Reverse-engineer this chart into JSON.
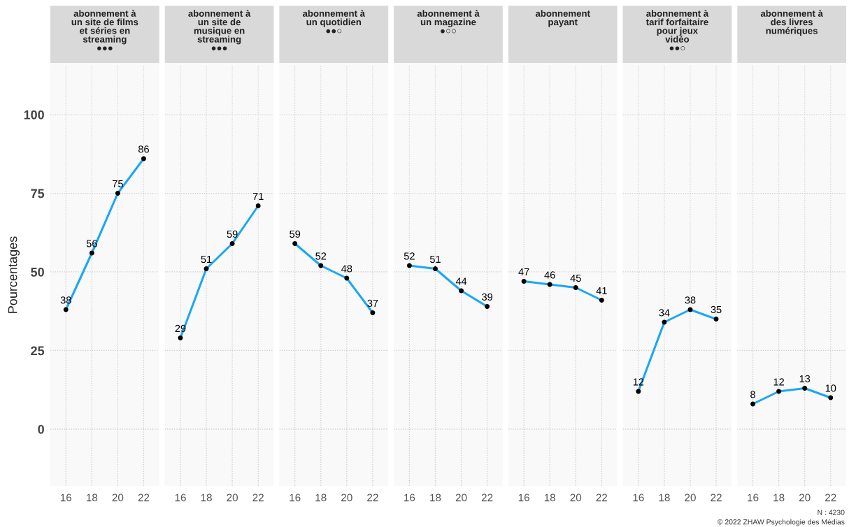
{
  "chart_data": [
    {
      "type": "line",
      "title": "abonnement à\nun site de films\net séries en\nstreaming\n●●●",
      "ylabel": "Pourcentages",
      "x": [
        16,
        18,
        20,
        22
      ],
      "series": [
        {
          "color": "#1aa7f5",
          "values": [
            38,
            56,
            75,
            86
          ]
        }
      ],
      "xlim": [
        14.8,
        23.2
      ],
      "xticks": [
        16,
        18,
        20,
        22
      ],
      "ylim": [
        -18,
        116
      ],
      "yticks": [
        0,
        25,
        50,
        75,
        100
      ],
      "grid": true,
      "marker": "circle",
      "line_style": "solid",
      "data_labels": true
    },
    {
      "type": "line",
      "title": "abonnement à\nun site de\nmusique en\nstreaming\n●●●",
      "x": [
        16,
        18,
        20,
        22
      ],
      "series": [
        {
          "color": "#1aa7f5",
          "values": [
            29,
            51,
            59,
            71
          ]
        }
      ],
      "xlim": [
        14.8,
        23.2
      ],
      "xticks": [
        16,
        18,
        20,
        22
      ],
      "ylim": [
        -18,
        116
      ],
      "tick_labels": "x",
      "grid": true,
      "marker": "circle",
      "line_style": "solid",
      "data_labels": true
    },
    {
      "type": "line",
      "title": "abonnement à\nun quotidien\n●●○",
      "x": [
        16,
        18,
        20,
        22
      ],
      "series": [
        {
          "color": "#1aa7f5",
          "values": [
            59,
            52,
            48,
            37
          ]
        }
      ],
      "xlim": [
        14.8,
        23.2
      ],
      "xticks": [
        16,
        18,
        20,
        22
      ],
      "ylim": [
        -18,
        116
      ],
      "tick_labels": "x",
      "grid": true,
      "marker": "circle",
      "line_style": "solid",
      "data_labels": true
    },
    {
      "type": "line",
      "title": "abonnement à\nun magazine\n●○○",
      "x": [
        16,
        18,
        20,
        22
      ],
      "series": [
        {
          "color": "#1aa7f5",
          "values": [
            52,
            51,
            44,
            39
          ]
        }
      ],
      "xlim": [
        14.8,
        23.2
      ],
      "xticks": [
        16,
        18,
        20,
        22
      ],
      "ylim": [
        -18,
        116
      ],
      "tick_labels": "x",
      "grid": true,
      "marker": "circle",
      "line_style": "solid",
      "data_labels": true
    },
    {
      "type": "line",
      "title": "abonnement\npayant",
      "x": [
        16,
        18,
        20,
        22
      ],
      "series": [
        {
          "color": "#1aa7f5",
          "values": [
            47,
            46,
            45,
            41
          ]
        }
      ],
      "xlim": [
        14.8,
        23.2
      ],
      "xticks": [
        16,
        18,
        20,
        22
      ],
      "ylim": [
        -18,
        116
      ],
      "tick_labels": "x",
      "grid": true,
      "marker": "circle",
      "line_style": "solid",
      "data_labels": true
    },
    {
      "type": "line",
      "title": "abonnement à\ntarif forfaitaire\npour jeux\nvidéo\n●●○",
      "x": [
        16,
        18,
        20,
        22
      ],
      "series": [
        {
          "color": "#1aa7f5",
          "values": [
            12,
            34,
            38,
            35
          ]
        }
      ],
      "xlim": [
        14.8,
        23.2
      ],
      "xticks": [
        16,
        18,
        20,
        22
      ],
      "ylim": [
        -18,
        116
      ],
      "tick_labels": "x",
      "grid": true,
      "marker": "circle",
      "line_style": "solid",
      "data_labels": true
    },
    {
      "type": "line",
      "title": "abonnement à\ndes livres\nnumériques",
      "x": [
        16,
        18,
        20,
        22
      ],
      "series": [
        {
          "color": "#1aa7f5",
          "values": [
            8,
            12,
            13,
            10
          ]
        }
      ],
      "xlim": [
        14.8,
        23.2
      ],
      "xticks": [
        16,
        18,
        20,
        22
      ],
      "ylim": [
        -18,
        116
      ],
      "tick_labels": "x",
      "grid": true,
      "marker": "circle",
      "line_style": "solid",
      "data_labels": true,
      "annotations": [
        "N : 4230",
        "© 2022 ZHAW Psychologie des Médias"
      ]
    }
  ]
}
